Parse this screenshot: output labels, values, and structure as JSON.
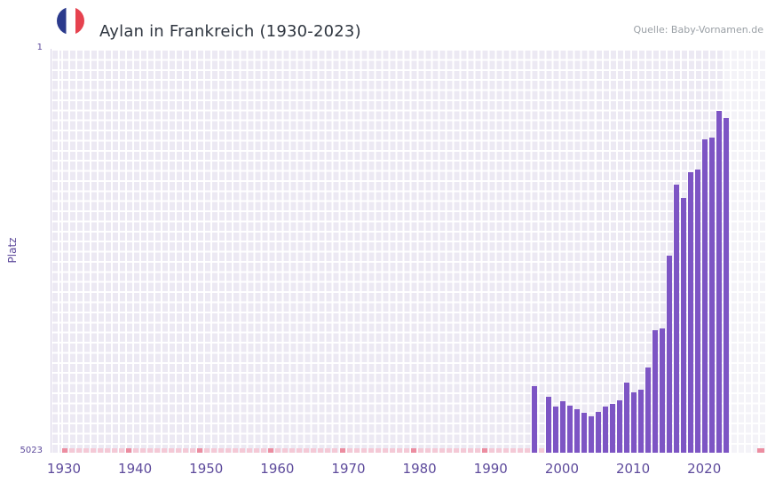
{
  "header": {
    "title": "Aylan in Frankreich (1930-2023)",
    "source": "Quelle: Baby-Vornamen.de"
  },
  "chart_data": {
    "type": "bar",
    "title": "Aylan in Frankreich (1930-2023)",
    "ylabel": "Platz",
    "y_axis": {
      "min": 1,
      "max": 5023,
      "top_label": "1",
      "bottom_label": "5023",
      "inverted": true
    },
    "x_ticks": [
      "1930",
      "1940",
      "1950",
      "1960",
      "1970",
      "1980",
      "1990",
      "2000",
      "2010",
      "2020"
    ],
    "bars": [
      {
        "year": 1996,
        "rank": 4190
      },
      {
        "year": 1998,
        "rank": 4330
      },
      {
        "year": 1999,
        "rank": 4450
      },
      {
        "year": 2000,
        "rank": 4380
      },
      {
        "year": 2001,
        "rank": 4440
      },
      {
        "year": 2002,
        "rank": 4480
      },
      {
        "year": 2003,
        "rank": 4530
      },
      {
        "year": 2004,
        "rank": 4570
      },
      {
        "year": 2005,
        "rank": 4520
      },
      {
        "year": 2006,
        "rank": 4450
      },
      {
        "year": 2007,
        "rank": 4420
      },
      {
        "year": 2008,
        "rank": 4370
      },
      {
        "year": 2009,
        "rank": 4150
      },
      {
        "year": 2010,
        "rank": 4270
      },
      {
        "year": 2011,
        "rank": 4240
      },
      {
        "year": 2012,
        "rank": 3960
      },
      {
        "year": 2013,
        "rank": 3500
      },
      {
        "year": 2014,
        "rank": 3480
      },
      {
        "year": 2015,
        "rank": 2570
      },
      {
        "year": 2016,
        "rank": 1690
      },
      {
        "year": 2017,
        "rank": 1860
      },
      {
        "year": 2018,
        "rank": 1540
      },
      {
        "year": 2019,
        "rank": 1500
      },
      {
        "year": 2020,
        "rank": 1130
      },
      {
        "year": 2021,
        "rank": 1110
      },
      {
        "year": 2022,
        "rank": 770
      },
      {
        "year": 2023,
        "rank": 860
      }
    ],
    "unranked": {
      "from": 1930,
      "to": 1995,
      "extra": [
        1997
      ]
    },
    "decade_marker_years": [
      1930,
      1939,
      1949,
      1959,
      1969,
      1979,
      1989
    ],
    "edge_marker": true,
    "legend": "off",
    "grid": "on",
    "colors": {
      "bar": "#7d55c4",
      "unranked": "#f4c9d6",
      "decade_marker": "#ec8da0",
      "plot_bg": "#ece9f3",
      "grid": "#ffffff",
      "tick_text": "#5e4b9c",
      "title_text": "#2f3640",
      "source_text": "#9aa0a6",
      "flag_blue": "#2b3a8c",
      "flag_red": "#e6424f"
    }
  }
}
